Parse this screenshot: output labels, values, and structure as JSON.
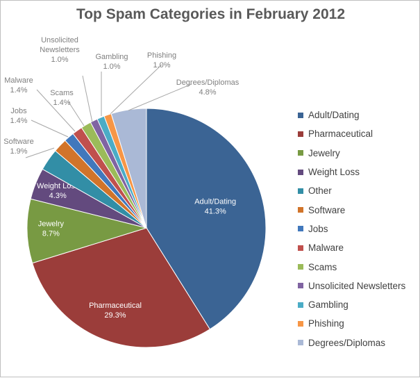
{
  "chart_data": {
    "type": "pie",
    "title": "Top Spam Categories in February 2012",
    "legend_position": "right",
    "slices": [
      {
        "label": "Adult/Dating",
        "value": 41.3,
        "value_label": "41.3%",
        "color": "#3B6494"
      },
      {
        "label": "Pharmaceutical",
        "value": 29.3,
        "value_label": "29.3%",
        "color": "#9B3D3A"
      },
      {
        "label": "Jewelry",
        "value": 8.7,
        "value_label": "8.7%",
        "color": "#789A43"
      },
      {
        "label": "Weight Loss",
        "value": 4.3,
        "value_label": "4.3%",
        "color": "#634A7E"
      },
      {
        "label": "Other",
        "value": 3.0,
        "value_label": "",
        "color": "#328EA6"
      },
      {
        "label": "Software",
        "value": 1.9,
        "value_label": "1.9%",
        "color": "#D1742A"
      },
      {
        "label": "Jobs",
        "value": 1.4,
        "value_label": "1.4%",
        "color": "#4178BC"
      },
      {
        "label": "Malware",
        "value": 1.4,
        "value_label": "1.4%",
        "color": "#C0504D"
      },
      {
        "label": "Scams",
        "value": 1.4,
        "value_label": "1.4%",
        "color": "#9BBB59"
      },
      {
        "label": "Unsolicited Newsletters",
        "value": 1.0,
        "value_label": "1.0%",
        "color": "#8064A2"
      },
      {
        "label": "Gambling",
        "value": 1.0,
        "value_label": "1.0%",
        "color": "#4BACC6"
      },
      {
        "label": "Phishing",
        "value": 1.0,
        "value_label": "1.0%",
        "color": "#F79646"
      },
      {
        "label": "Degrees/Diplomas",
        "value": 4.8,
        "value_label": "4.8%",
        "color": "#AAB9D6"
      }
    ]
  }
}
